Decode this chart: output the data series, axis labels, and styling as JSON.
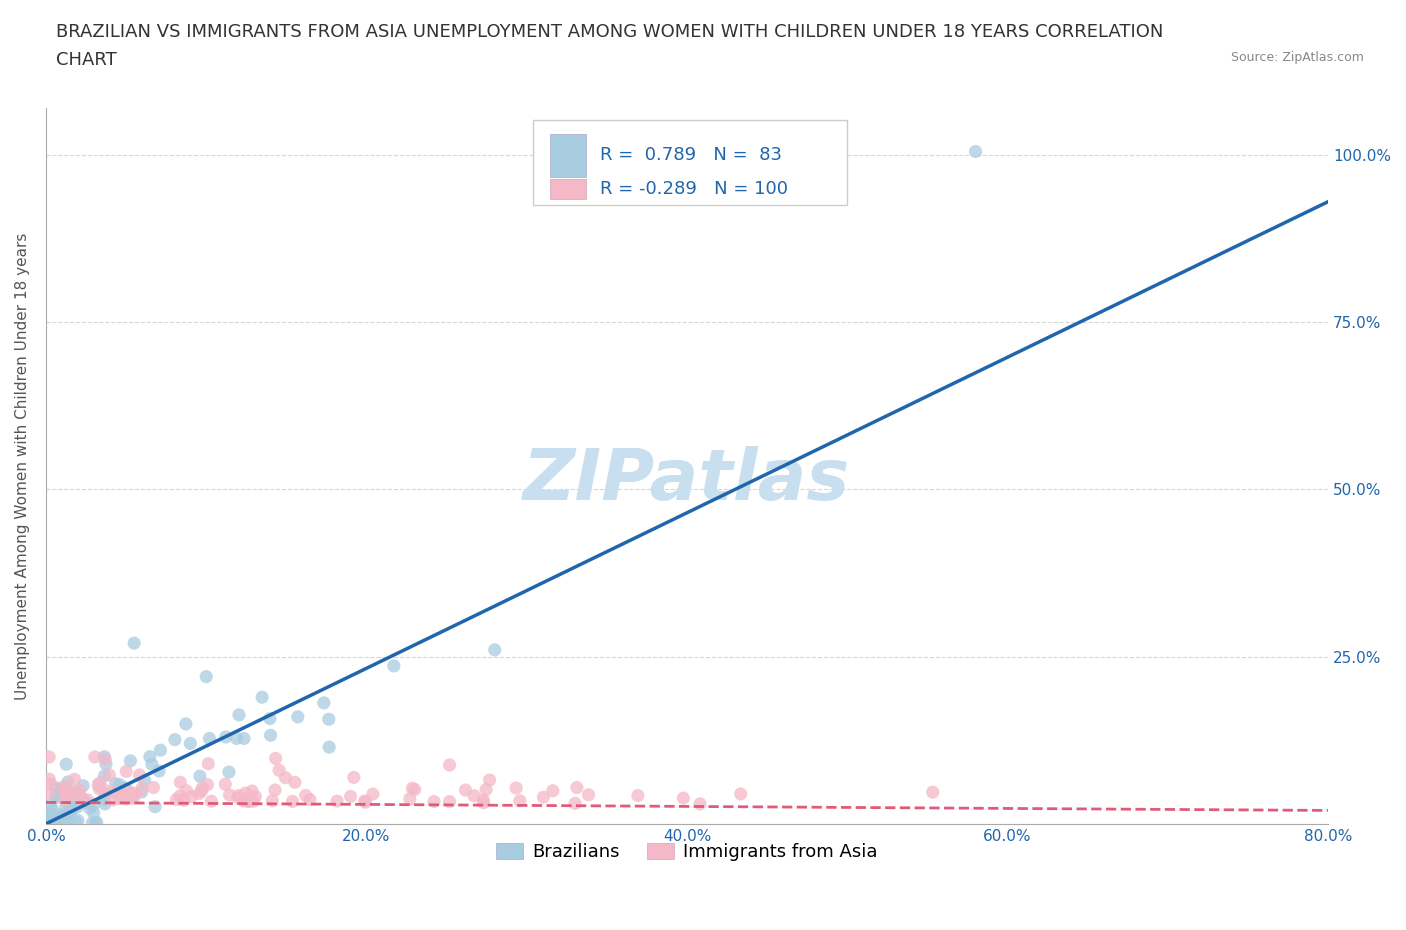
{
  "title_line1": "BRAZILIAN VS IMMIGRANTS FROM ASIA UNEMPLOYMENT AMONG WOMEN WITH CHILDREN UNDER 18 YEARS CORRELATION",
  "title_line2": "CHART",
  "source_text": "Source: ZipAtlas.com",
  "ylabel": "Unemployment Among Women with Children Under 18 years",
  "x_tick_labels": [
    "0.0%",
    "20.0%",
    "40.0%",
    "60.0%",
    "80.0%"
  ],
  "x_tick_values": [
    0.0,
    20.0,
    40.0,
    60.0,
    80.0
  ],
  "y_tick_labels": [
    "25.0%",
    "50.0%",
    "75.0%",
    "100.0%"
  ],
  "y_tick_values": [
    25.0,
    50.0,
    75.0,
    100.0
  ],
  "xlim": [
    0.0,
    80.0
  ],
  "ylim": [
    0.0,
    107.0
  ],
  "blue_R": 0.789,
  "blue_N": 83,
  "pink_R": -0.289,
  "pink_N": 100,
  "blue_color": "#a8cce0",
  "blue_line_color": "#2166ac",
  "pink_color": "#f4b8c8",
  "pink_line_color": "#e05a7a",
  "legend_label_blue": "Brazilians",
  "legend_label_pink": "Immigrants from Asia",
  "watermark_text": "ZIPatlas",
  "background_color": "#ffffff",
  "plot_bg_color": "#ffffff",
  "grid_color": "#cccccc",
  "title_fontsize": 13,
  "axis_label_fontsize": 11,
  "tick_fontsize": 11,
  "legend_fontsize": 13,
  "stat_fontsize": 13,
  "watermark_fontsize": 52,
  "watermark_color": "#c8dff0",
  "seed": 42,
  "blue_reg_x0": 0.0,
  "blue_reg_y0": 0.0,
  "blue_reg_x1": 80.0,
  "blue_reg_y1": 93.0,
  "pink_reg_x0": 0.0,
  "pink_reg_y0": 3.2,
  "pink_reg_x1": 80.0,
  "pink_reg_y1": 2.0
}
